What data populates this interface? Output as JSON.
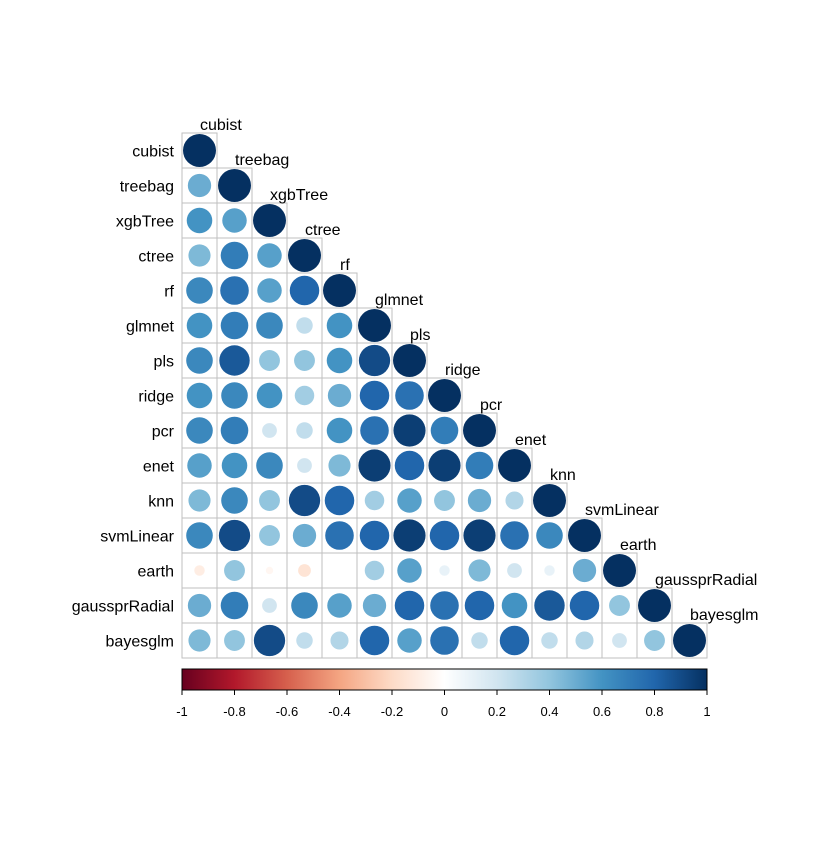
{
  "chart_data": {
    "type": "heatmap",
    "style": "correlation-matrix-circles",
    "layout": "lower-triangle",
    "title": "",
    "labels": [
      "cubist",
      "treebag",
      "xgbTree",
      "ctree",
      "rf",
      "glmnet",
      "pls",
      "ridge",
      "pcr",
      "enet",
      "knn",
      "svmLinear",
      "earth",
      "gaussprRadial",
      "bayesglm"
    ],
    "matrix": [
      [
        1.0
      ],
      [
        0.5,
        1.0
      ],
      [
        0.6,
        0.55,
        1.0
      ],
      [
        0.45,
        0.7,
        0.55,
        1.0
      ],
      [
        0.65,
        0.75,
        0.55,
        0.8,
        1.0
      ],
      [
        0.6,
        0.7,
        0.65,
        0.25,
        0.6,
        1.0
      ],
      [
        0.65,
        0.85,
        0.4,
        0.4,
        0.6,
        0.9,
        1.0
      ],
      [
        0.6,
        0.65,
        0.6,
        0.35,
        0.5,
        0.8,
        0.75,
        1.0
      ],
      [
        0.65,
        0.7,
        0.2,
        0.25,
        0.6,
        0.75,
        0.95,
        0.7,
        1.0
      ],
      [
        0.55,
        0.6,
        0.65,
        0.2,
        0.45,
        0.95,
        0.8,
        0.95,
        0.7,
        1.0
      ],
      [
        0.45,
        0.65,
        0.4,
        0.9,
        0.8,
        0.35,
        0.55,
        0.4,
        0.5,
        0.3,
        1.0
      ],
      [
        0.65,
        0.9,
        0.4,
        0.5,
        0.75,
        0.8,
        0.95,
        0.8,
        0.95,
        0.75,
        0.65,
        1.0
      ],
      [
        -0.1,
        0.4,
        -0.05,
        -0.15,
        0.0,
        0.35,
        0.55,
        0.1,
        0.45,
        0.2,
        0.1,
        0.5,
        1.0
      ],
      [
        0.5,
        0.7,
        0.2,
        0.65,
        0.55,
        0.5,
        0.8,
        0.75,
        0.8,
        0.6,
        0.85,
        0.8,
        0.4,
        1.0
      ],
      [
        0.45,
        0.4,
        0.9,
        0.25,
        0.3,
        0.8,
        0.55,
        0.75,
        0.25,
        0.8,
        0.25,
        0.3,
        0.2,
        0.4,
        1.0
      ]
    ],
    "color_scale": {
      "min": -1,
      "max": 1,
      "ticks": [
        "-1",
        "-0.8",
        "-0.6",
        "-0.4",
        "-0.2",
        "0",
        "0.2",
        "0.4",
        "0.6",
        "0.8",
        "1"
      ],
      "stops": [
        "#67001F",
        "#B2182B",
        "#D6604D",
        "#F4A582",
        "#FDDBC7",
        "#FFFFFF",
        "#D1E5F0",
        "#92C5DE",
        "#4393C3",
        "#2166AC",
        "#053061"
      ]
    },
    "colorbar_position": "bottom",
    "cell_border_color": "#bfbfbf"
  }
}
